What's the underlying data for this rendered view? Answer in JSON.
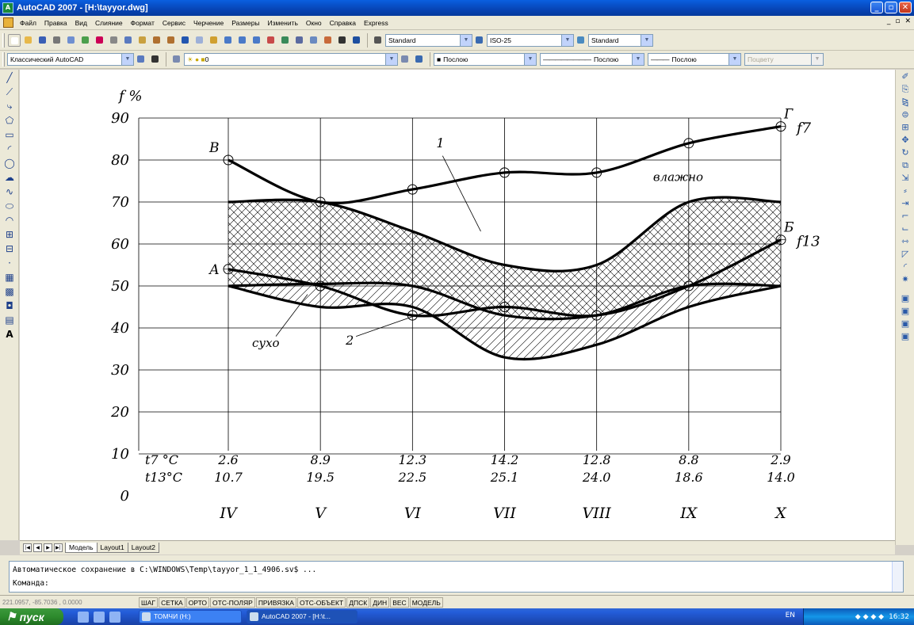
{
  "window": {
    "title": "AutoCAD 2007 - [H:\\tayyor.dwg]",
    "app_icon_text": "A"
  },
  "menu": [
    "Файл",
    "Правка",
    "Вид",
    "Слияние",
    "Формат",
    "Сервис",
    "Черчение",
    "Размеры",
    "Изменить",
    "Окно",
    "Справка",
    "Express"
  ],
  "toolbar": {
    "text_style": "Standard",
    "dim_style": "ISO-25",
    "table_style": "Standard",
    "workspace": "Классический AutoCAD",
    "layer": "0",
    "color": "Послою",
    "linetype": "Послою",
    "lineweight": "Послою",
    "plotstyle": "Поцвету"
  },
  "chart_data": {
    "type": "line",
    "ylabel": "f %",
    "ylim": [
      0,
      90
    ],
    "yticks": [
      0,
      10,
      20,
      30,
      40,
      50,
      60,
      70,
      80,
      90
    ],
    "categories": [
      "IV",
      "V",
      "VI",
      "VII",
      "VIII",
      "IX",
      "X"
    ],
    "temperature_rows": [
      {
        "label": "t7 °C",
        "values": [
          "2.6",
          "8.9",
          "12.3",
          "14.2",
          "12.8",
          "8.8",
          "2.9"
        ]
      },
      {
        "label": "t13°C",
        "values": [
          "10.7",
          "19.5",
          "22.5",
          "25.1",
          "24.0",
          "18.6",
          "14.0"
        ]
      }
    ],
    "series": [
      {
        "name": "f7",
        "values": [
          80,
          70,
          73,
          77,
          77,
          84,
          88
        ],
        "end_label": "Г",
        "start_label": "В"
      },
      {
        "name": "f13",
        "values": [
          54,
          50,
          43,
          45,
          43,
          50,
          61
        ],
        "end_label": "Б",
        "start_label": "А"
      }
    ],
    "band_upper": [
      70,
      70,
      63,
      55,
      55,
      70,
      70
    ],
    "band_lower": [
      50,
      50.5,
      50,
      43,
      43,
      50,
      50
    ],
    "band_hatch_lower": [
      50,
      45,
      45,
      33,
      36,
      45,
      50
    ],
    "annotations": {
      "wet": "влажно",
      "dry": "сухо",
      "zone1": "1",
      "zone2": "2"
    }
  },
  "tabs": [
    "Модель",
    "Layout1",
    "Layout2"
  ],
  "command": {
    "line1": "Автоматическое сохранение в C:\\WINDOWS\\Temp\\tayyor_1_1_4906.sv$ ...",
    "prompt": "Команда:"
  },
  "status": {
    "coords": "221.0957, -85.7036 , 0.0000",
    "toggles": [
      "ШАГ",
      "СЕТКА",
      "ОРТО",
      "ОТС-ПОЛЯР",
      "ПРИВЯЗКА",
      "ОТС-ОБЪЕКТ",
      "ДПСК",
      "ДИН",
      "ВЕС",
      "МОДЕЛЬ"
    ]
  },
  "taskbar": {
    "start": "пуск",
    "tasks": [
      "ТОМЧИ (H:)",
      "AutoCAD 2007 - [H:\\t..."
    ],
    "lang": "EN",
    "clock": "16:32"
  }
}
